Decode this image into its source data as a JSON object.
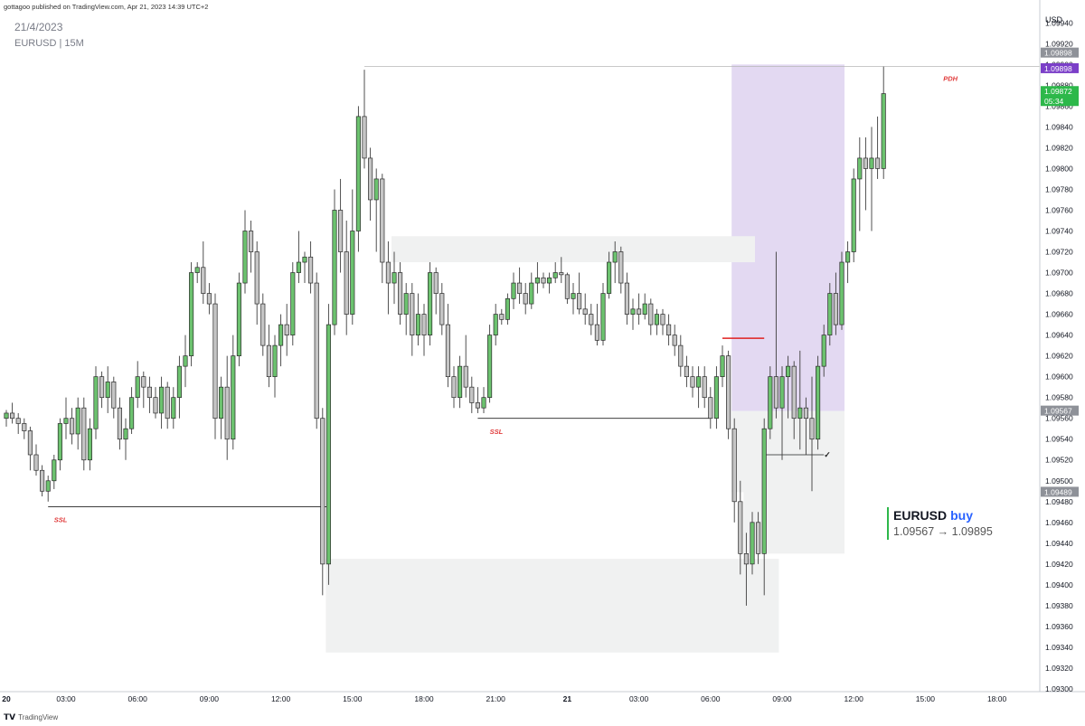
{
  "header": {
    "published": "gottagoo published on TradingView.com, Apr 21, 2023 14:39 UTC+2",
    "date": "21/4/2023",
    "symbol": "EURUSD | 15M"
  },
  "footer": {
    "logo_text": "TradingView",
    "logo_icon": "tradingview-logo-icon"
  },
  "signal": {
    "symbol": "EURUSD",
    "direction": "buy",
    "range": "1.09567 → 1.09895"
  },
  "colors": {
    "up": "#6cc26f",
    "down": "#c5c5c5",
    "wick": "#3d3d3d",
    "zone": "#f0f1f1",
    "purple_zone": "#e3d9f2",
    "ssl_label": "#e03a3a",
    "pdh_line": "#b7b7b7",
    "red_line": "#e02020",
    "price_purple": "#7b3fc8",
    "price_green": "#2db84a",
    "price_gray": "#8e9198"
  },
  "chart_data": {
    "type": "candlestick",
    "currency": "USD",
    "timeframe": "15M",
    "ylim": [
      1.093,
      1.09955
    ],
    "y_ticks": [
      "1.09940",
      "1.09920",
      "1.09900",
      "1.09880",
      "1.09860",
      "1.09840",
      "1.09820",
      "1.09800",
      "1.09780",
      "1.09760",
      "1.09740",
      "1.09720",
      "1.09700",
      "1.09680",
      "1.09660",
      "1.09640",
      "1.09620",
      "1.09600",
      "1.09580",
      "1.09560",
      "1.09540",
      "1.09520",
      "1.09500",
      "1.09480",
      "1.09460",
      "1.09440",
      "1.09420",
      "1.09400",
      "1.09380",
      "1.09360",
      "1.09340",
      "1.09320",
      "1.09300"
    ],
    "x_ticks": [
      {
        "label": "20",
        "bar": 0,
        "bold": true
      },
      {
        "label": "03:00",
        "bar": 10
      },
      {
        "label": "06:00",
        "bar": 22
      },
      {
        "label": "09:00",
        "bar": 34
      },
      {
        "label": "12:00",
        "bar": 46
      },
      {
        "label": "15:00",
        "bar": 58
      },
      {
        "label": "18:00",
        "bar": 70
      },
      {
        "label": "21:00",
        "bar": 82
      },
      {
        "label": "21",
        "bar": 94,
        "bold": true
      },
      {
        "label": "03:00",
        "bar": 106
      },
      {
        "label": "06:00",
        "bar": 118
      },
      {
        "label": "09:00",
        "bar": 130
      },
      {
        "label": "12:00",
        "bar": 142
      },
      {
        "label": "15:00",
        "bar": 154
      },
      {
        "label": "18:00",
        "bar": 166
      }
    ],
    "candles": [
      [
        1.0956,
        1.09568,
        1.09552,
        1.09565
      ],
      [
        1.09565,
        1.09575,
        1.09555,
        1.0956
      ],
      [
        1.0956,
        1.09565,
        1.09545,
        1.09555
      ],
      [
        1.09555,
        1.0956,
        1.0954,
        1.09548
      ],
      [
        1.09548,
        1.09552,
        1.0951,
        1.09525
      ],
      [
        1.09525,
        1.09535,
        1.09505,
        1.0951
      ],
      [
        1.0951,
        1.09515,
        1.09485,
        1.0949
      ],
      [
        1.0949,
        1.09505,
        1.0948,
        1.095
      ],
      [
        1.095,
        1.09525,
        1.09492,
        1.0952
      ],
      [
        1.0952,
        1.0956,
        1.0951,
        1.09555
      ],
      [
        1.09555,
        1.0958,
        1.0954,
        1.0956
      ],
      [
        1.0956,
        1.0957,
        1.09535,
        1.09545
      ],
      [
        1.09545,
        1.0958,
        1.0953,
        1.0957
      ],
      [
        1.0957,
        1.0958,
        1.0951,
        1.0952
      ],
      [
        1.0952,
        1.0956,
        1.0951,
        1.0955
      ],
      [
        1.0955,
        1.0961,
        1.0954,
        1.096
      ],
      [
        1.096,
        1.09605,
        1.0957,
        1.0958
      ],
      [
        1.0958,
        1.0961,
        1.09565,
        1.09595
      ],
      [
        1.09595,
        1.096,
        1.0956,
        1.0957
      ],
      [
        1.0957,
        1.0958,
        1.0953,
        1.0954
      ],
      [
        1.0954,
        1.0956,
        1.0952,
        1.0955
      ],
      [
        1.0955,
        1.0959,
        1.09545,
        1.0958
      ],
      [
        1.0958,
        1.09615,
        1.0957,
        1.096
      ],
      [
        1.096,
        1.09605,
        1.0957,
        1.0959
      ],
      [
        1.0959,
        1.096,
        1.09565,
        1.0958
      ],
      [
        1.0958,
        1.0959,
        1.0956,
        1.09565
      ],
      [
        1.09565,
        1.096,
        1.0955,
        1.0959
      ],
      [
        1.0959,
        1.09595,
        1.0955,
        1.0956
      ],
      [
        1.0956,
        1.0959,
        1.0955,
        1.0958
      ],
      [
        1.0958,
        1.0962,
        1.0956,
        1.0961
      ],
      [
        1.0961,
        1.0964,
        1.0959,
        1.0962
      ],
      [
        1.0962,
        1.0971,
        1.0961,
        1.097
      ],
      [
        1.097,
        1.0971,
        1.0969,
        1.09705
      ],
      [
        1.09705,
        1.0973,
        1.0967,
        1.0968
      ],
      [
        1.0968,
        1.0969,
        1.0966,
        1.0967
      ],
      [
        1.0967,
        1.0968,
        1.0954,
        1.0956
      ],
      [
        1.0956,
        1.096,
        1.0954,
        1.0959
      ],
      [
        1.0959,
        1.0962,
        1.0952,
        1.0954
      ],
      [
        1.0954,
        1.0964,
        1.0953,
        1.0962
      ],
      [
        1.0962,
        1.097,
        1.0961,
        1.0969
      ],
      [
        1.0969,
        1.0976,
        1.0968,
        1.0974
      ],
      [
        1.0974,
        1.0975,
        1.097,
        1.0972
      ],
      [
        1.0972,
        1.0973,
        1.0965,
        1.0967
      ],
      [
        1.0967,
        1.0968,
        1.0962,
        1.0963
      ],
      [
        1.0963,
        1.0965,
        1.0959,
        1.096
      ],
      [
        1.096,
        1.0964,
        1.0958,
        1.0963
      ],
      [
        1.0963,
        1.0966,
        1.0961,
        1.0965
      ],
      [
        1.0965,
        1.0967,
        1.0962,
        1.0964
      ],
      [
        1.0964,
        1.0971,
        1.0963,
        1.097
      ],
      [
        1.097,
        1.0974,
        1.0969,
        1.0971
      ],
      [
        1.0971,
        1.0972,
        1.0969,
        1.09715
      ],
      [
        1.09715,
        1.0973,
        1.0968,
        1.0969
      ],
      [
        1.0969,
        1.097,
        1.0955,
        1.0956
      ],
      [
        1.0956,
        1.0957,
        1.0939,
        1.0942
      ],
      [
        1.0942,
        1.0967,
        1.094,
        1.0965
      ],
      [
        1.0965,
        1.0978,
        1.0964,
        1.0976
      ],
      [
        1.0976,
        1.0979,
        1.097,
        1.0972
      ],
      [
        1.0972,
        1.0975,
        1.0964,
        1.0966
      ],
      [
        1.0966,
        1.0978,
        1.0965,
        1.0974
      ],
      [
        1.0974,
        1.0986,
        1.0972,
        1.0985
      ],
      [
        1.0985,
        1.09895,
        1.098,
        1.0981
      ],
      [
        1.0981,
        1.0982,
        1.0975,
        1.0977
      ],
      [
        1.0977,
        1.098,
        1.0972,
        1.0979
      ],
      [
        1.0979,
        1.09795,
        1.0969,
        1.0971
      ],
      [
        1.0971,
        1.0973,
        1.0966,
        1.0969
      ],
      [
        1.0969,
        1.0972,
        1.0967,
        1.097
      ],
      [
        1.097,
        1.0971,
        1.0965,
        1.0966
      ],
      [
        1.0966,
        1.0969,
        1.0964,
        1.0968
      ],
      [
        1.0968,
        1.0969,
        1.0962,
        1.0964
      ],
      [
        1.0964,
        1.0968,
        1.0963,
        1.0966
      ],
      [
        1.0966,
        1.0967,
        1.0962,
        1.0964
      ],
      [
        1.0964,
        1.0971,
        1.0963,
        1.097
      ],
      [
        1.097,
        1.09705,
        1.0966,
        1.0968
      ],
      [
        1.0968,
        1.0969,
        1.0964,
        1.0965
      ],
      [
        1.0965,
        1.0967,
        1.0959,
        1.096
      ],
      [
        1.096,
        1.0961,
        1.0957,
        1.0958
      ],
      [
        1.0958,
        1.0962,
        1.0957,
        1.0961
      ],
      [
        1.0961,
        1.0964,
        1.0958,
        1.0959
      ],
      [
        1.0959,
        1.096,
        1.09565,
        1.09575
      ],
      [
        1.09575,
        1.0959,
        1.09565,
        1.0957
      ],
      [
        1.0957,
        1.0959,
        1.09565,
        1.0958
      ],
      [
        1.0958,
        1.0965,
        1.09575,
        1.0964
      ],
      [
        1.0964,
        1.0967,
        1.0963,
        1.0966
      ],
      [
        1.0966,
        1.09665,
        1.0965,
        1.09655
      ],
      [
        1.09655,
        1.0968,
        1.0965,
        1.09675
      ],
      [
        1.09675,
        1.097,
        1.09665,
        1.0969
      ],
      [
        1.0969,
        1.09705,
        1.0967,
        1.0968
      ],
      [
        1.0968,
        1.0969,
        1.0966,
        1.0967
      ],
      [
        1.0967,
        1.097,
        1.09665,
        1.0969
      ],
      [
        1.0969,
        1.0971,
        1.0968,
        1.09695
      ],
      [
        1.09695,
        1.097,
        1.09685,
        1.0969
      ],
      [
        1.0969,
        1.097,
        1.0968,
        1.09695
      ],
      [
        1.09695,
        1.0971,
        1.0969,
        1.097
      ],
      [
        1.097,
        1.09715,
        1.0969,
        1.09698
      ],
      [
        1.09698,
        1.097,
        1.0967,
        1.09675
      ],
      [
        1.09675,
        1.0969,
        1.0966,
        1.0968
      ],
      [
        1.0968,
        1.097,
        1.0966,
        1.09665
      ],
      [
        1.09665,
        1.0968,
        1.0965,
        1.0966
      ],
      [
        1.0966,
        1.0967,
        1.0964,
        1.0965
      ],
      [
        1.0965,
        1.0967,
        1.0963,
        1.09635
      ],
      [
        1.09635,
        1.0969,
        1.0963,
        1.0968
      ],
      [
        1.0968,
        1.0972,
        1.09675,
        1.0971
      ],
      [
        1.0971,
        1.0973,
        1.0969,
        1.0972
      ],
      [
        1.0972,
        1.09725,
        1.0968,
        1.0969
      ],
      [
        1.0969,
        1.097,
        1.0965,
        1.0966
      ],
      [
        1.0966,
        1.09675,
        1.09645,
        1.09665
      ],
      [
        1.09665,
        1.0968,
        1.0965,
        1.0966
      ],
      [
        1.0966,
        1.0968,
        1.09655,
        1.0967
      ],
      [
        1.0967,
        1.09675,
        1.0964,
        1.0965
      ],
      [
        1.0965,
        1.09665,
        1.0964,
        1.0966
      ],
      [
        1.0966,
        1.09665,
        1.0964,
        1.0965
      ],
      [
        1.0965,
        1.0966,
        1.0963,
        1.0964
      ],
      [
        1.0964,
        1.0965,
        1.0962,
        1.0963
      ],
      [
        1.0963,
        1.0964,
        1.096,
        1.0961
      ],
      [
        1.0961,
        1.0962,
        1.0959,
        1.096
      ],
      [
        1.096,
        1.0961,
        1.0958,
        1.0959
      ],
      [
        1.0959,
        1.0961,
        1.0957,
        1.096
      ],
      [
        1.096,
        1.0961,
        1.0957,
        1.0958
      ],
      [
        1.0958,
        1.0959,
        1.0955,
        1.0956
      ],
      [
        1.0956,
        1.0961,
        1.0955,
        1.096
      ],
      [
        1.096,
        1.0963,
        1.0959,
        1.0962
      ],
      [
        1.0962,
        1.09625,
        1.0954,
        1.0955
      ],
      [
        1.0955,
        1.0956,
        1.0946,
        1.0948
      ],
      [
        1.0948,
        1.095,
        1.0941,
        1.0943
      ],
      [
        1.0943,
        1.0945,
        1.0938,
        1.0942
      ],
      [
        1.0942,
        1.0947,
        1.0941,
        1.0946
      ],
      [
        1.0946,
        1.0947,
        1.0942,
        1.0943
      ],
      [
        1.0943,
        1.0956,
        1.0939,
        1.0955
      ],
      [
        1.0955,
        1.0961,
        1.0954,
        1.096
      ],
      [
        1.096,
        1.0972,
        1.0956,
        1.0957
      ],
      [
        1.0957,
        1.0961,
        1.0952,
        1.096
      ],
      [
        1.096,
        1.0962,
        1.0956,
        1.0961
      ],
      [
        1.0961,
        1.09615,
        1.0954,
        1.0956
      ],
      [
        1.0956,
        1.09625,
        1.0953,
        1.0957
      ],
      [
        1.0957,
        1.0958,
        1.09525,
        1.0956
      ],
      [
        1.0956,
        1.096,
        1.0949,
        1.0954
      ],
      [
        1.0954,
        1.0962,
        1.0953,
        1.0961
      ],
      [
        1.0961,
        1.0965,
        1.096,
        1.0964
      ],
      [
        1.0964,
        1.0969,
        1.0963,
        1.0968
      ],
      [
        1.0968,
        1.097,
        1.0964,
        1.0965
      ],
      [
        1.0965,
        1.0972,
        1.09645,
        1.0971
      ],
      [
        1.0971,
        1.0973,
        1.0969,
        1.0972
      ],
      [
        1.0972,
        1.098,
        1.0971,
        1.0979
      ],
      [
        1.0979,
        1.0983,
        1.0974,
        1.0981
      ],
      [
        1.0981,
        1.0983,
        1.0976,
        1.098
      ],
      [
        1.098,
        1.0984,
        1.0974,
        1.0981
      ],
      [
        1.0981,
        1.0985,
        1.0979,
        1.098
      ],
      [
        1.098,
        1.09898,
        1.0979,
        1.09872
      ]
    ],
    "zones": [
      {
        "from_bar": 122,
        "to_bar": 140,
        "y1": 1.099,
        "y2": 1.09567,
        "style": "purple"
      },
      {
        "from_bar": 122,
        "to_bar": 140,
        "y1": 1.09567,
        "y2": 1.09489,
        "style": "gray"
      },
      {
        "from_bar": 54,
        "to_bar": 129,
        "y1": 1.09425,
        "y2": 1.09335,
        "style": "gray"
      },
      {
        "from_bar": 65,
        "to_bar": 125,
        "y1": 1.09735,
        "y2": 1.0971,
        "style": "gray"
      },
      {
        "from_bar": 124,
        "to_bar": 140,
        "y1": 1.09489,
        "y2": 1.0943,
        "style": "gray"
      }
    ],
    "lines": [
      {
        "from_bar": 60,
        "to_bar": 160,
        "y": 1.09898,
        "style": "pdh"
      },
      {
        "from_bar": 7,
        "to_bar": 54,
        "y": 1.09475,
        "style": "black"
      },
      {
        "from_bar": 79,
        "to_bar": 118,
        "y": 1.0956,
        "style": "black"
      },
      {
        "from_bar": 120,
        "to_bar": 127,
        "y": 1.09637,
        "style": "red"
      },
      {
        "from_bar": 127,
        "to_bar": 137,
        "y": 1.09525,
        "style": "black"
      }
    ],
    "labels": [
      {
        "text": "SSL",
        "bar": 8,
        "y": 1.09468,
        "style": "ssl"
      },
      {
        "text": "SSL",
        "bar": 81,
        "y": 1.09553,
        "style": "ssl"
      },
      {
        "text": "PDH",
        "bar": 157,
        "y": 1.09892,
        "style": "ssl"
      },
      {
        "text": "✓",
        "bar": 137,
        "y": 1.09525,
        "style": "check"
      }
    ],
    "price_labels": [
      {
        "text": "1.09898",
        "y": 1.09911,
        "style": "gray"
      },
      {
        "text": "1.09898",
        "y": 1.09896,
        "style": "purple"
      },
      {
        "text": "1.09872",
        "y": 1.09874,
        "sub": "05:34",
        "style": "green"
      },
      {
        "text": "1.09567",
        "y": 1.09567,
        "style": "gray"
      },
      {
        "text": "1.09489",
        "y": 1.09489,
        "style": "gray"
      }
    ]
  }
}
